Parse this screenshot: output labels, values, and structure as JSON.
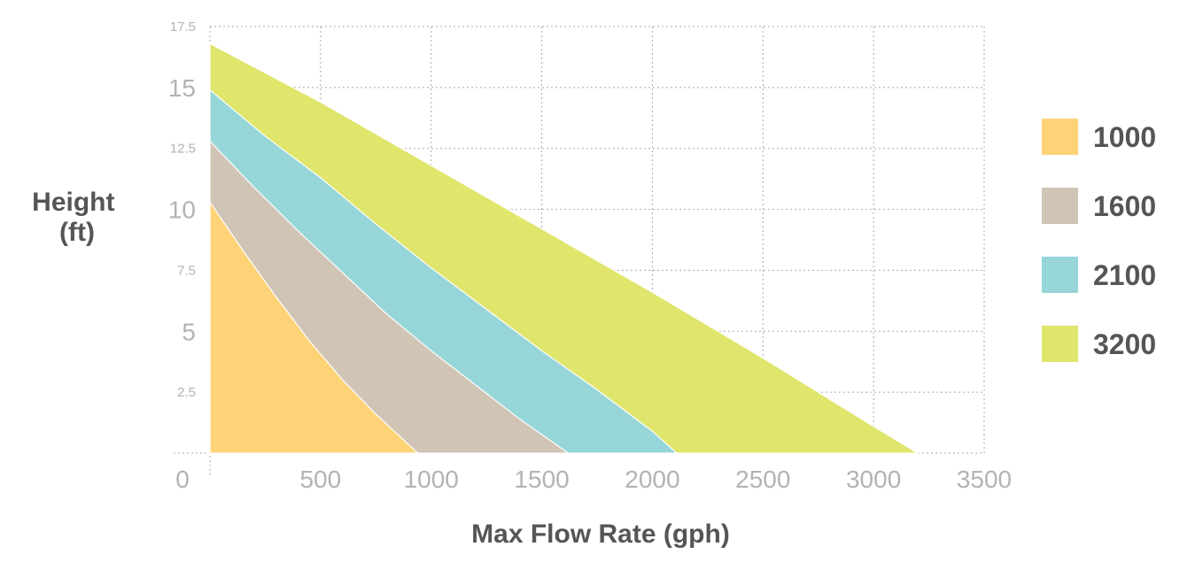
{
  "chart_data": {
    "type": "area",
    "xlabel": "Max Flow Rate (gph)",
    "ylabel_lines": [
      "Height",
      "(ft)"
    ],
    "xlim": [
      0,
      3500
    ],
    "ylim": [
      0,
      17.5
    ],
    "x_ticks": [
      "0",
      "500",
      "1000",
      "1500",
      "2000",
      "2500",
      "3000",
      "3500"
    ],
    "y_ticks": [
      {
        "value": 2.5,
        "label": "2.5",
        "major": false
      },
      {
        "value": 5,
        "label": "5",
        "major": true
      },
      {
        "value": 7.5,
        "label": "7.5",
        "major": false
      },
      {
        "value": 10,
        "label": "10",
        "major": true
      },
      {
        "value": 12.5,
        "label": "12.5",
        "major": false
      },
      {
        "value": 15,
        "label": "15",
        "major": true
      },
      {
        "value": 17.5,
        "label": "17.5",
        "major": false
      }
    ],
    "grid": true,
    "legend_position": "right",
    "series": [
      {
        "name": "3200",
        "color": "#e0e56c",
        "points": [
          [
            0,
            16.8
          ],
          [
            500,
            14.4
          ],
          [
            1000,
            11.8
          ],
          [
            1500,
            9.2
          ],
          [
            2000,
            6.6
          ],
          [
            2500,
            3.9
          ],
          [
            3000,
            1.1
          ],
          [
            3200,
            0
          ]
        ]
      },
      {
        "name": "2100",
        "color": "#97d6d8",
        "points": [
          [
            0,
            14.9
          ],
          [
            250,
            13.0
          ],
          [
            500,
            11.3
          ],
          [
            750,
            9.4
          ],
          [
            1000,
            7.6
          ],
          [
            1250,
            5.9
          ],
          [
            1500,
            4.2
          ],
          [
            1750,
            2.6
          ],
          [
            2000,
            0.9
          ],
          [
            2110,
            0
          ]
        ]
      },
      {
        "name": "1600",
        "color": "#d0c4b5",
        "points": [
          [
            0,
            12.8
          ],
          [
            200,
            10.9
          ],
          [
            400,
            9.1
          ],
          [
            600,
            7.4
          ],
          [
            800,
            5.7
          ],
          [
            1000,
            4.2
          ],
          [
            1200,
            2.8
          ],
          [
            1400,
            1.4
          ],
          [
            1620,
            0
          ]
        ]
      },
      {
        "name": "1000",
        "color": "#fed378",
        "points": [
          [
            0,
            10.3
          ],
          [
            150,
            8.3
          ],
          [
            300,
            6.4
          ],
          [
            450,
            4.6
          ],
          [
            600,
            3.0
          ],
          [
            750,
            1.6
          ],
          [
            940,
            0
          ]
        ]
      }
    ]
  },
  "legend": [
    {
      "label": "1000",
      "color": "#fed378"
    },
    {
      "label": "1600",
      "color": "#d0c4b5"
    },
    {
      "label": "2100",
      "color": "#97d6d8"
    },
    {
      "label": "3200",
      "color": "#e0e56c"
    }
  ]
}
